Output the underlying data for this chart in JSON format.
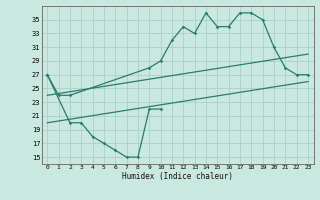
{
  "xlabel": "Humidex (Indice chaleur)",
  "bg_color": "#c8e8e0",
  "line_color": "#2d7a6e",
  "grid_color": "#a8cfc8",
  "xlim": [
    -0.5,
    23.5
  ],
  "ylim": [
    14,
    37
  ],
  "yticks": [
    15,
    17,
    19,
    21,
    23,
    25,
    27,
    29,
    31,
    33,
    35
  ],
  "xticks": [
    0,
    1,
    2,
    3,
    4,
    5,
    6,
    7,
    8,
    9,
    10,
    11,
    12,
    13,
    14,
    15,
    16,
    17,
    18,
    19,
    20,
    21,
    22,
    23
  ],
  "top_zigzag_x": [
    0,
    1,
    2,
    9,
    10,
    11,
    12,
    13,
    14,
    15,
    16,
    17,
    18,
    19,
    20,
    21,
    22,
    23
  ],
  "top_zigzag_y": [
    27,
    24,
    24,
    28,
    29,
    32,
    34,
    33,
    36,
    34,
    34,
    36,
    36,
    35,
    31,
    28,
    27,
    27
  ],
  "bottom_zigzag_x": [
    0,
    2,
    3,
    4,
    5,
    6,
    7,
    8,
    9,
    10
  ],
  "bottom_zigzag_y": [
    27,
    20,
    20,
    18,
    17,
    16,
    15,
    15,
    22,
    22
  ],
  "upper_trend_x": [
    0,
    23
  ],
  "upper_trend_y": [
    24,
    30
  ],
  "lower_trend_x": [
    0,
    23
  ],
  "lower_trend_y": [
    20,
    26
  ]
}
